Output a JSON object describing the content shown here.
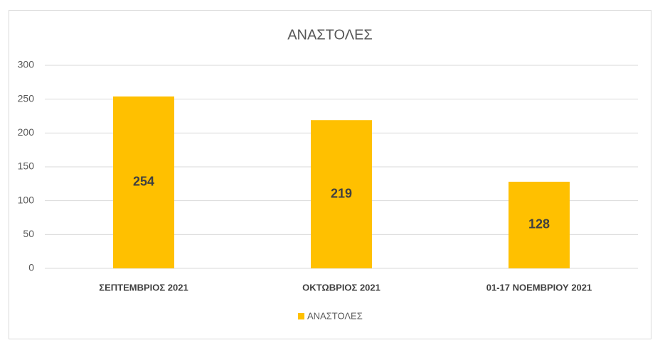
{
  "chart_data": {
    "type": "bar",
    "title": "ΑΝΑΣΤΟΛΕΣ",
    "categories": [
      "ΣΕΠΤΕΜΒΡΙΟΣ 2021",
      "ΟΚΤΩΒΡΙΟΣ 2021",
      "01-17 ΝΟΕΜΒΡΙΟΥ 2021"
    ],
    "series": [
      {
        "name": "ΑΝΑΣΤΟΛΕΣ",
        "color": "#ffc000",
        "values": [
          254,
          219,
          128
        ]
      }
    ],
    "ylim": [
      0,
      300
    ],
    "yticks": [
      0,
      50,
      100,
      150,
      200,
      250,
      300
    ],
    "grid": true,
    "legend": "bottom"
  }
}
